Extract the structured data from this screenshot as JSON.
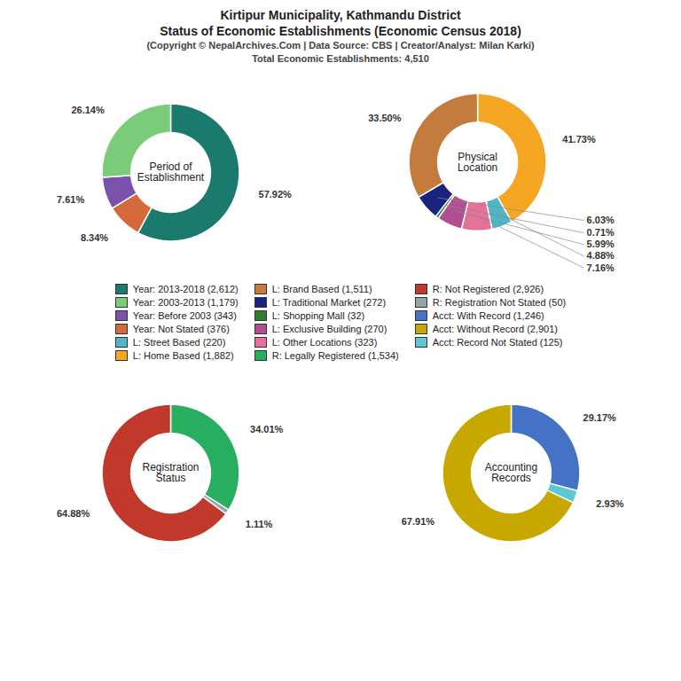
{
  "title": "Kirtipur Municipality, Kathmandu District\nStatus of Economic Establishments (Economic Census 2018)",
  "subtitle": "(Copyright © NepalArchives.Com | Data Source: CBS | Creator/Analyst: Milan Karki)\nTotal Economic Establishments: 4,510",
  "chart_data": [
    {
      "type": "pie",
      "title": "Period of\nEstablishment",
      "values": [
        57.92,
        8.34,
        7.61,
        26.14
      ],
      "value_labels": [
        "57.92%",
        "8.34%",
        "7.61%",
        "26.14%"
      ],
      "colors": [
        "#1a7a6e",
        "#d4693a",
        "#7b52ab",
        "#7acc7a"
      ],
      "data_labels": true
    },
    {
      "type": "pie",
      "title": "Physical\nLocation",
      "values": [
        41.73,
        4.88,
        7.16,
        5.99,
        0.71,
        6.03,
        33.5
      ],
      "value_labels": [
        "41.73%",
        "4.88%",
        "7.16%",
        "5.99%",
        "0.71%",
        "6.03%",
        "33.50%"
      ],
      "colors": [
        "#f5a623",
        "#4db6c8",
        "#e57399",
        "#b05090",
        "#2e7d32",
        "#1a237e",
        "#c47c3e"
      ],
      "data_labels": true
    },
    {
      "type": "pie",
      "title": "Registration\nStatus",
      "values": [
        34.01,
        1.11,
        64.88
      ],
      "value_labels": [
        "34.01%",
        "1.11%",
        "64.88%"
      ],
      "colors": [
        "#27ae60",
        "#95a5a6",
        "#c0392b"
      ],
      "data_labels": true
    },
    {
      "type": "pie",
      "title": "Accounting\nRecords",
      "values": [
        29.17,
        2.93,
        67.91
      ],
      "value_labels": [
        "29.17%",
        "2.93%",
        "67.91%"
      ],
      "colors": [
        "#4472c4",
        "#5bc8d4",
        "#c8a800"
      ],
      "data_labels": true
    }
  ],
  "legend_items": [
    {
      "name": "Year: 2013-2018 (2,612)",
      "color": "#1a7a6e"
    },
    {
      "name": "Year: 2003-2013 (1,179)",
      "color": "#7acc7a"
    },
    {
      "name": "Year: Before 2003 (343)",
      "color": "#7b52ab"
    },
    {
      "name": "Year: Not Stated (376)",
      "color": "#d4693a"
    },
    {
      "name": "L: Street Based (220)",
      "color": "#4db6c8"
    },
    {
      "name": "L: Home Based (1,882)",
      "color": "#f5a623"
    },
    {
      "name": "L: Brand Based (1,511)",
      "color": "#c47c3e"
    },
    {
      "name": "L: Traditional Market (272)",
      "color": "#1a237e"
    },
    {
      "name": "L: Shopping Mall (32)",
      "color": "#2e7d32"
    },
    {
      "name": "L: Exclusive Building (270)",
      "color": "#b05090"
    },
    {
      "name": "L: Other Locations (323)",
      "color": "#e57399"
    },
    {
      "name": "R: Legally Registered (1,534)",
      "color": "#27ae60"
    },
    {
      "name": "R: Not Registered (2,926)",
      "color": "#c0392b"
    },
    {
      "name": "R: Registration Not Stated (50)",
      "color": "#95a5a6"
    },
    {
      "name": "Acct: With Record (1,246)",
      "color": "#4472c4"
    },
    {
      "name": "Acct: Without Record (2,901)",
      "color": "#c8a800"
    },
    {
      "name": "Acct: Record Not Stated (125)",
      "color": "#5bc8d4"
    }
  ]
}
